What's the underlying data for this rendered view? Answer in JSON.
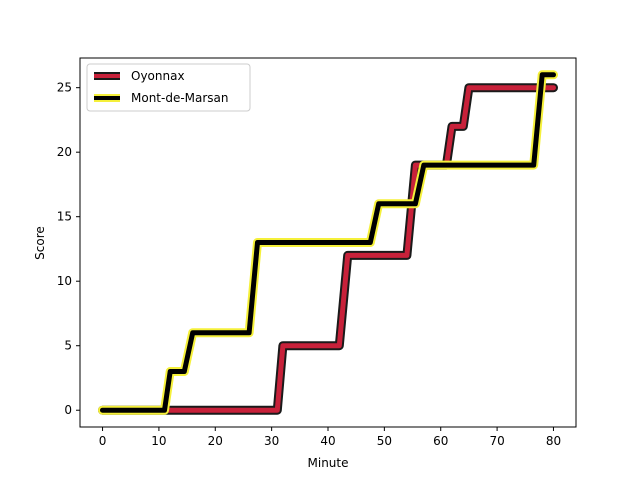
{
  "chart_data": {
    "type": "line",
    "title": "",
    "xlabel": "Minute",
    "ylabel": "Score",
    "xlim": [
      -4,
      84
    ],
    "ylim": [
      -1.3,
      27.3
    ],
    "xticks": [
      0,
      10,
      20,
      30,
      40,
      50,
      60,
      70,
      80
    ],
    "yticks": [
      0,
      5,
      10,
      15,
      20,
      25
    ],
    "grid": false,
    "legend_position": "top-left",
    "series": [
      {
        "name": "Oyonnax",
        "color": "#c8213a",
        "edge_color": "#1a1a1a",
        "x": [
          0,
          31,
          32,
          42,
          43.5,
          54,
          55.5,
          61,
          62,
          64,
          65,
          80
        ],
        "y": [
          0,
          0,
          5,
          5,
          12,
          12,
          19,
          19,
          22,
          22,
          25,
          25
        ]
      },
      {
        "name": "Mont-de-Marsan",
        "color": "#000000",
        "edge_color": "#f5f03a",
        "x": [
          0,
          11,
          12,
          14.5,
          16,
          26,
          27.5,
          47.5,
          49,
          55.5,
          57,
          76.5,
          78,
          80
        ],
        "y": [
          0,
          0,
          3,
          3,
          6,
          6,
          13,
          13,
          16,
          16,
          19,
          19,
          26,
          26
        ]
      }
    ]
  }
}
